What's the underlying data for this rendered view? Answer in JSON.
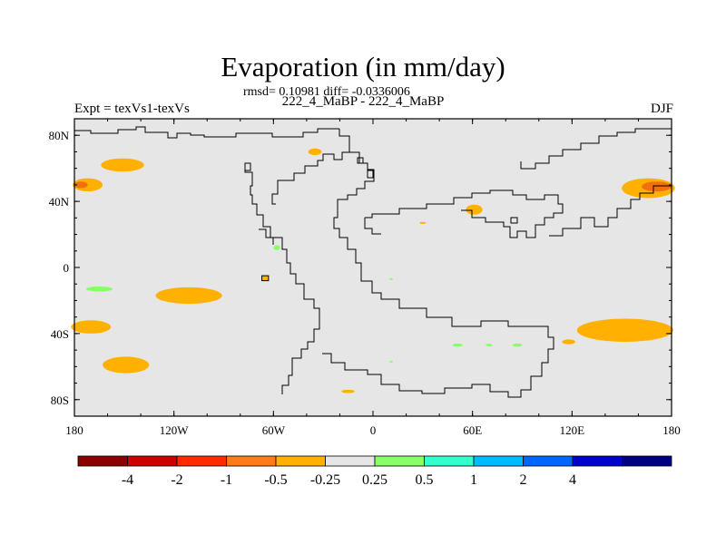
{
  "title": "Evaporation (in mm/day)",
  "stats": "rmsd= 0.10981 diff= -0.0336006",
  "subtitle": "222_4_MaBP - 222_4_MaBP",
  "expt_label": "Expt = texVs1-texVs",
  "season": "DJF",
  "map": {
    "lon_range": [
      -180,
      180
    ],
    "lat_range": [
      -90,
      90
    ],
    "background_color": "#e6e6e6",
    "x_ticks": [
      {
        "lon": -180,
        "label": "180"
      },
      {
        "lon": -120,
        "label": "120W"
      },
      {
        "lon": -60,
        "label": "60W"
      },
      {
        "lon": 0,
        "label": "0"
      },
      {
        "lon": 60,
        "label": "60E"
      },
      {
        "lon": 120,
        "label": "120E"
      },
      {
        "lon": 180,
        "label": "180"
      }
    ],
    "y_ticks": [
      {
        "lat": 80,
        "label": "80N"
      },
      {
        "lat": 40,
        "label": "40N"
      },
      {
        "lat": 0,
        "label": "0"
      },
      {
        "lat": -40,
        "label": "40S"
      },
      {
        "lat": -80,
        "label": "80S"
      }
    ],
    "anomaly_patches": [
      {
        "lon": -151,
        "lat": 62,
        "rlon": 13,
        "rlat": 4,
        "color": "#ffb000"
      },
      {
        "lon": -172,
        "lat": 50,
        "rlon": 9,
        "rlat": 4,
        "color": "#ffb000"
      },
      {
        "lon": -176,
        "lat": 50,
        "rlon": 4,
        "rlat": 2,
        "color": "#f07010"
      },
      {
        "lon": -111,
        "lat": -17,
        "rlon": 20,
        "rlat": 5,
        "color": "#ffb000"
      },
      {
        "lon": -170,
        "lat": -36,
        "rlon": 12,
        "rlat": 4,
        "color": "#ffb000"
      },
      {
        "lon": -149,
        "lat": -59,
        "rlon": 14,
        "rlat": 5,
        "color": "#ffb000"
      },
      {
        "lon": 166,
        "lat": 48,
        "rlon": 16,
        "rlat": 6,
        "color": "#ffb000"
      },
      {
        "lon": 171,
        "lat": 49,
        "rlon": 9,
        "rlat": 3,
        "color": "#f07010"
      },
      {
        "lon": 152,
        "lat": -38,
        "rlon": 29,
        "rlat": 7,
        "color": "#ffb000"
      },
      {
        "lon": 118,
        "lat": -45,
        "rlon": 4,
        "rlat": 1.5,
        "color": "#ffb000"
      },
      {
        "lon": 61,
        "lat": 35,
        "rlon": 5,
        "rlat": 3,
        "color": "#ffb000"
      },
      {
        "lon": -35,
        "lat": 70,
        "rlon": 4,
        "rlat": 2,
        "color": "#ffb000"
      },
      {
        "lon": -15,
        "lat": -75,
        "rlon": 4,
        "rlat": 1,
        "color": "#ffb000"
      },
      {
        "lon": 30,
        "lat": 27,
        "rlon": 2,
        "rlat": 0.6,
        "color": "#ffb000"
      },
      {
        "lon": -165,
        "lat": -13,
        "rlon": 8,
        "rlat": 1.5,
        "color": "#88ff66"
      },
      {
        "lon": -58,
        "lat": 12,
        "rlon": 2,
        "rlat": 1.5,
        "color": "#88ff66"
      },
      {
        "lon": 51,
        "lat": -47,
        "rlon": 3,
        "rlat": 1,
        "color": "#88ff66"
      },
      {
        "lon": 70,
        "lat": -47,
        "rlon": 2,
        "rlat": 0.8,
        "color": "#88ff66"
      },
      {
        "lon": 87,
        "lat": -47,
        "rlon": 3,
        "rlat": 1,
        "color": "#88ff66"
      },
      {
        "lon": 11,
        "lat": -57,
        "rlon": 1,
        "rlat": 0.6,
        "color": "#88ff66"
      },
      {
        "lon": 11,
        "lat": -7,
        "rlon": 1,
        "rlat": 0.6,
        "color": "#88ff66"
      }
    ],
    "grid_cell_box": {
      "lon": -67,
      "lat": -5,
      "dlon": 4,
      "dlat": 3,
      "color": "#ffb000"
    }
  },
  "colorbar": {
    "colors": [
      "#8b0000",
      "#cc0000",
      "#ff2a00",
      "#ff7a1a",
      "#ffb000",
      "#e6e6e6",
      "#88ff66",
      "#33ffcc",
      "#00bbff",
      "#0066ff",
      "#0000cc",
      "#000080"
    ],
    "labels": [
      "-4",
      "-2",
      "-1",
      "-0.5",
      "-0.25",
      "0.25",
      "0.5",
      "1",
      "2",
      "4"
    ]
  }
}
